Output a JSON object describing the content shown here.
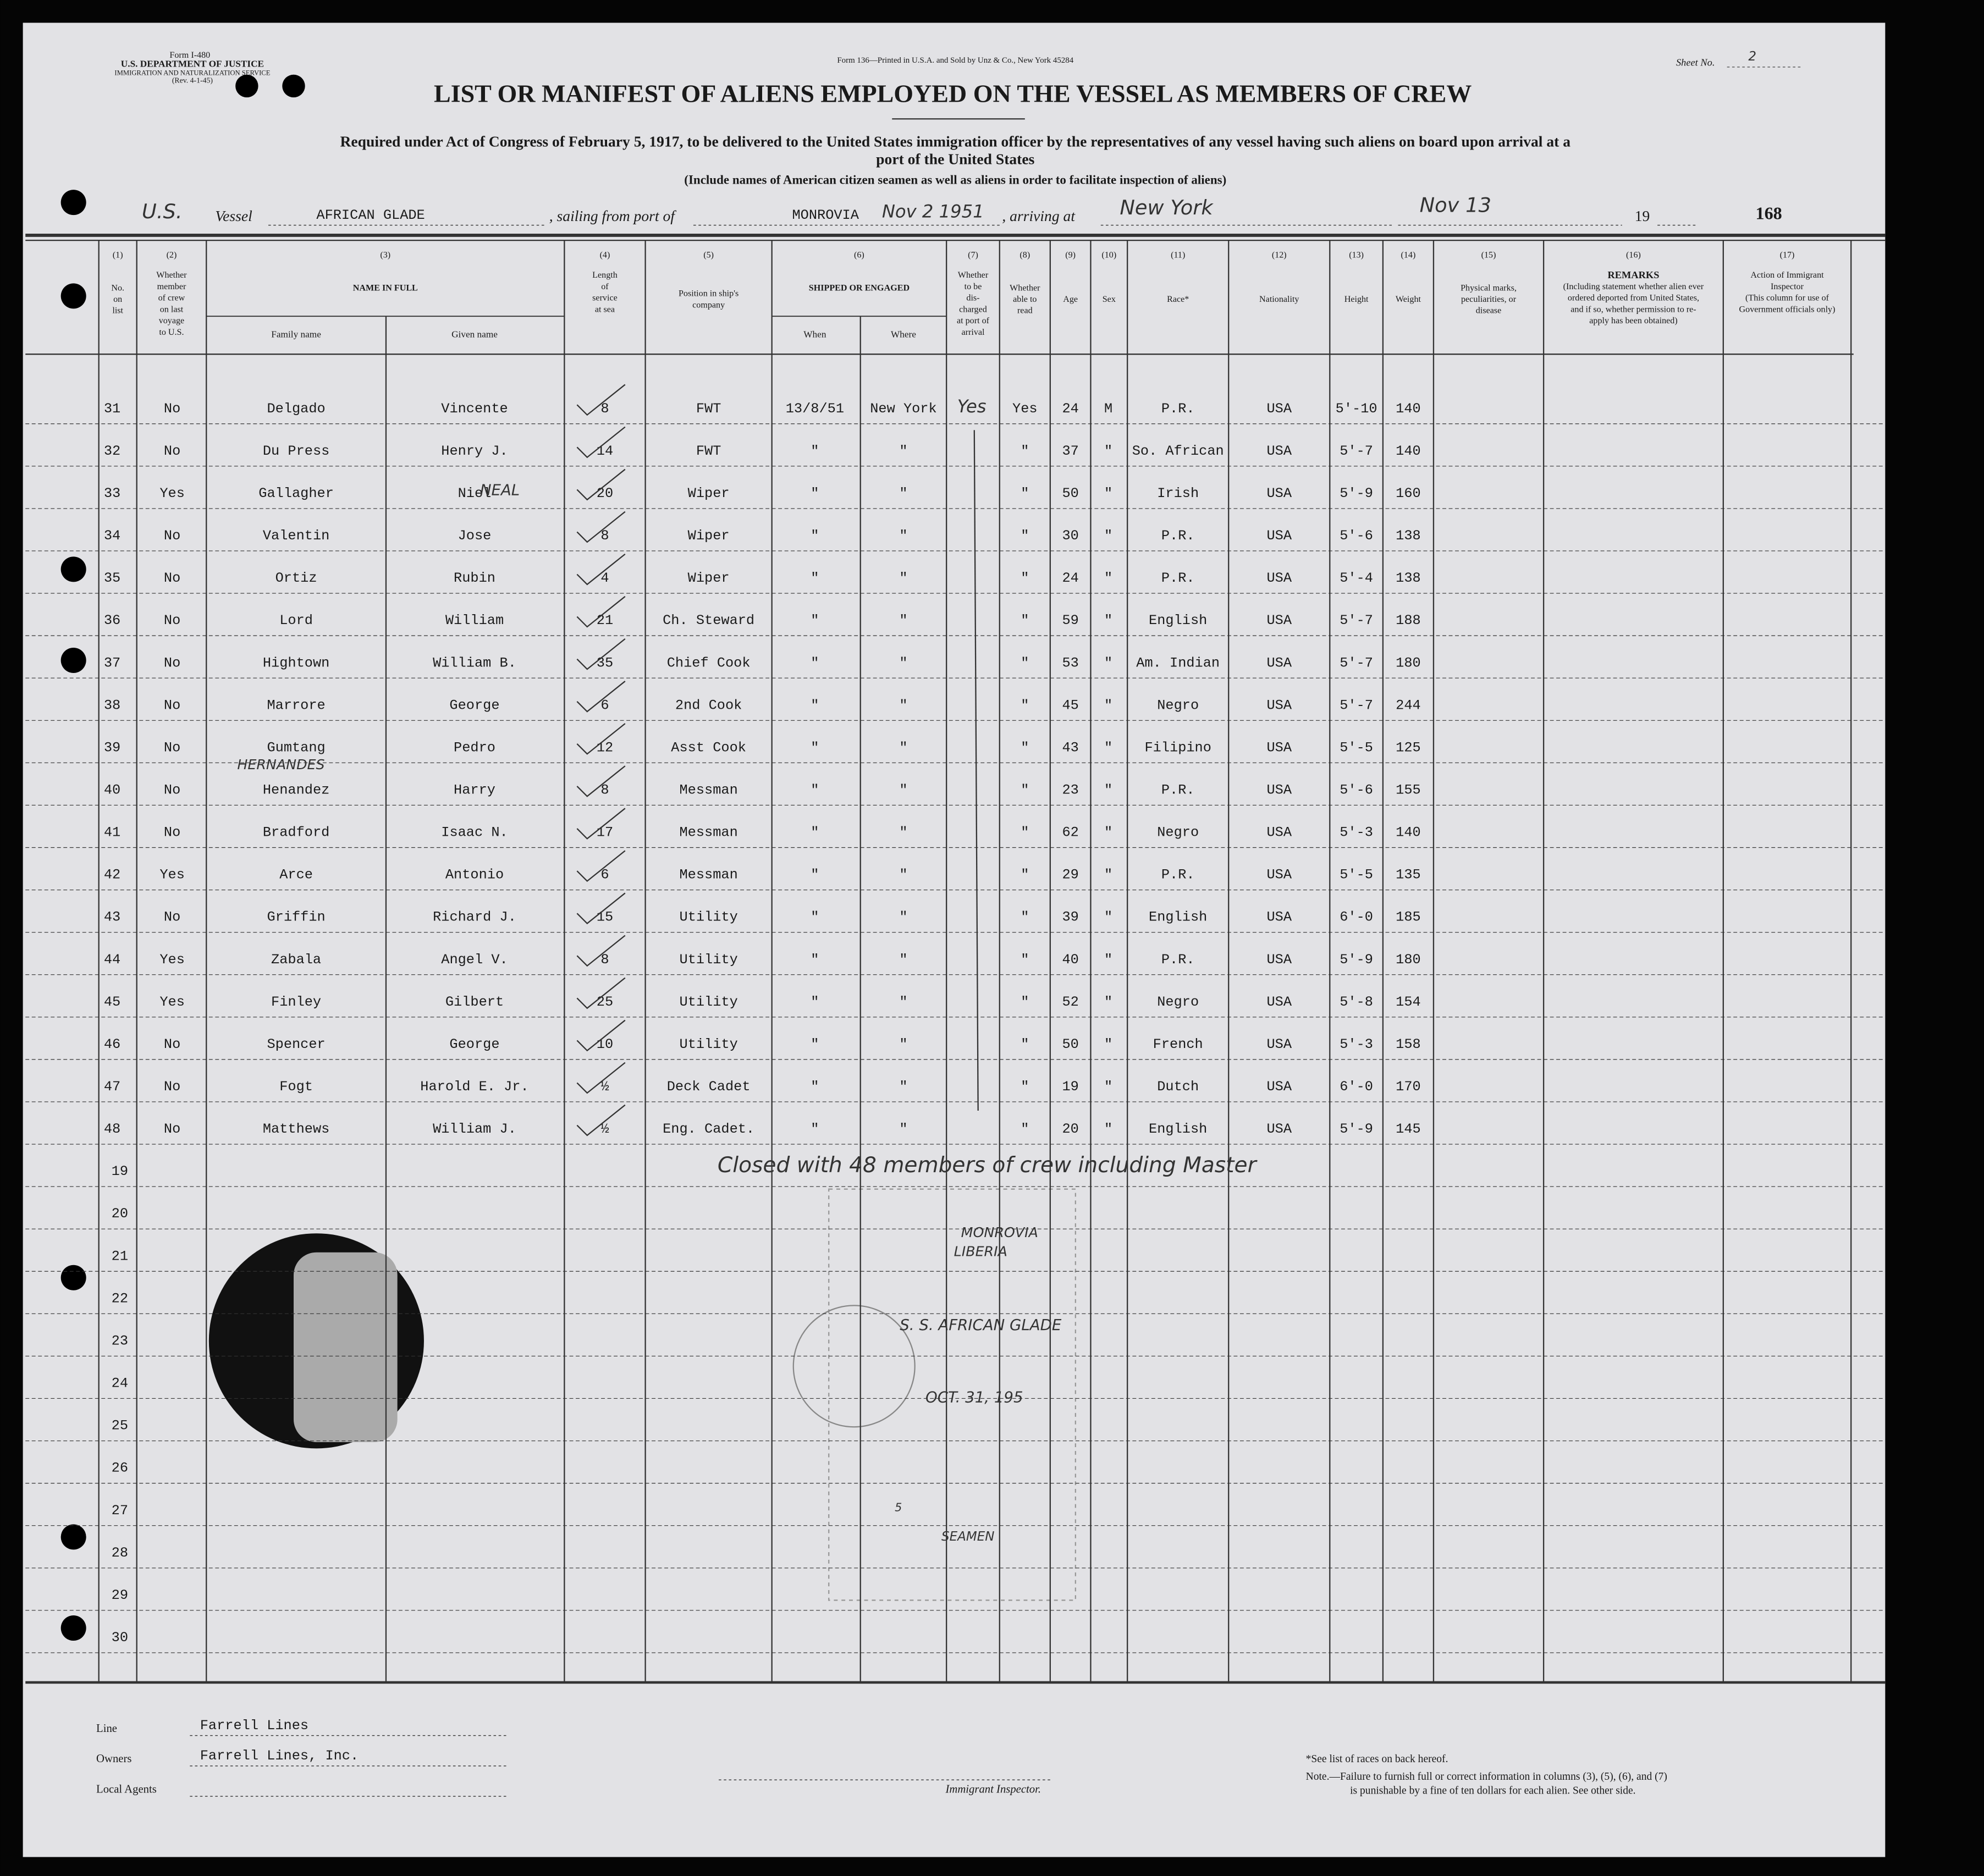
{
  "header": {
    "form_id": "Form I-480",
    "department": "U.S. DEPARTMENT OF JUSTICE",
    "service": "IMMIGRATION AND NATURALIZATION SERVICE",
    "revision": "(Rev. 4-1-45)",
    "printer": "Form 136—Printed in U.S.A. and Sold by Unz & Co., New York 45284",
    "sheet_label": "Sheet No.",
    "sheet_no": "2",
    "title": "LIST OR MANIFEST OF ALIENS EMPLOYED ON THE VESSEL AS MEMBERS OF CREW",
    "subtitle_1": "Required under Act of Congress of February 5, 1917, to be delivered to the United States immigration officer by the representatives of any vessel having such aliens on board upon arrival at a",
    "subtitle_2": "port of the United States",
    "subtitle_3": "(Include names of American citizen seamen as well as aliens in order to facilitate inspection of aliens)"
  },
  "vessel": {
    "flag": "U.S.",
    "vessel_label": "Vessel",
    "vessel_name": "AFRICAN GLADE",
    "sailing_label": ", sailing from port of",
    "port": "MONROVIA",
    "sailing_date": "Nov 2 1951",
    "arriving_label": ", arriving at",
    "arrival_port": "New York",
    "arrival_date": "Nov 13",
    "year_label": "19",
    "stamp_no": "168"
  },
  "columns": [
    {
      "num": "(1)",
      "lines": [
        "No.",
        "on",
        "list"
      ]
    },
    {
      "num": "(2)",
      "lines": [
        "Whether",
        "member",
        "of crew",
        "on last",
        "voyage",
        "to U.S."
      ]
    },
    {
      "num": "(3)",
      "lines": [
        "NAME IN FULL"
      ],
      "sub": [
        "Family name",
        "Given name"
      ]
    },
    {
      "num": "(4)",
      "lines": [
        "Length",
        "of",
        "service",
        "at sea"
      ]
    },
    {
      "num": "(5)",
      "lines": [
        "Position in ship's",
        "company"
      ]
    },
    {
      "num": "(6)",
      "lines": [
        "SHIPPED OR ENGAGED"
      ],
      "sub": [
        "When",
        "Where"
      ]
    },
    {
      "num": "(7)",
      "lines": [
        "Whether",
        "to be",
        "dis-",
        "charged",
        "at port of",
        "arrival"
      ]
    },
    {
      "num": "(8)",
      "lines": [
        "Whether",
        "able to",
        "read"
      ]
    },
    {
      "num": "(9)",
      "lines": [
        "Age"
      ]
    },
    {
      "num": "(10)",
      "lines": [
        "Sex"
      ]
    },
    {
      "num": "(11)",
      "lines": [
        "Race*"
      ]
    },
    {
      "num": "(12)",
      "lines": [
        "Nationality"
      ]
    },
    {
      "num": "(13)",
      "lines": [
        "Height"
      ]
    },
    {
      "num": "(14)",
      "lines": [
        "Weight"
      ]
    },
    {
      "num": "(15)",
      "lines": [
        "Physical marks,",
        "peculiarities, or",
        "disease"
      ]
    },
    {
      "num": "(16)",
      "lines": [
        "REMARKS",
        "(Including statement whether alien ever",
        "ordered deported from United States,",
        "and if so, whether permission to re-",
        "apply has been obtained)"
      ]
    },
    {
      "num": "(17)",
      "lines": [
        "Action of Immigrant",
        "Inspector",
        "(This column for use of",
        "Government officials only)"
      ]
    }
  ],
  "rows": [
    [
      "31",
      "No",
      "Delgado",
      "Vincente",
      "8",
      "FWT",
      "13/8/51",
      "New York",
      "Yes",
      "24",
      "M",
      "P.R.",
      "USA",
      "5'-10",
      "140"
    ],
    [
      "32",
      "No",
      "Du Press",
      "Henry J.",
      "14",
      "FWT",
      "\"",
      "\"",
      "\"",
      "37",
      "\"",
      "So. African",
      "USA",
      "5'-7",
      "140"
    ],
    [
      "33",
      "Yes",
      "Gallagher",
      "Niel",
      "20",
      "Wiper",
      "\"",
      "\"",
      "\"",
      "50",
      "\"",
      "Irish",
      "USA",
      "5'-9",
      "160"
    ],
    [
      "34",
      "No",
      "Valentin",
      "Jose",
      "8",
      "Wiper",
      "\"",
      "\"",
      "\"",
      "30",
      "\"",
      "P.R.",
      "USA",
      "5'-6",
      "138"
    ],
    [
      "35",
      "No",
      "Ortiz",
      "Rubin",
      "4",
      "Wiper",
      "\"",
      "\"",
      "\"",
      "24",
      "\"",
      "P.R.",
      "USA",
      "5'-4",
      "138"
    ],
    [
      "36",
      "No",
      "Lord",
      "William",
      "21",
      "Ch. Steward",
      "\"",
      "\"",
      "\"",
      "59",
      "\"",
      "English",
      "USA",
      "5'-7",
      "188"
    ],
    [
      "37",
      "No",
      "Hightown",
      "William B.",
      "35",
      "Chief Cook",
      "\"",
      "\"",
      "\"",
      "53",
      "\"",
      "Am. Indian",
      "USA",
      "5'-7",
      "180"
    ],
    [
      "38",
      "No",
      "Marrore",
      "George",
      "6",
      "2nd Cook",
      "\"",
      "\"",
      "\"",
      "45",
      "\"",
      "Negro",
      "USA",
      "5'-7",
      "244"
    ],
    [
      "39",
      "No",
      "Gumtang",
      "Pedro",
      "12",
      "Asst Cook",
      "\"",
      "\"",
      "\"",
      "43",
      "\"",
      "Filipino",
      "USA",
      "5'-5",
      "125"
    ],
    [
      "40",
      "No",
      "Henandez",
      "Harry",
      "8",
      "Messman",
      "\"",
      "\"",
      "\"",
      "23",
      "\"",
      "P.R.",
      "USA",
      "5'-6",
      "155"
    ],
    [
      "41",
      "No",
      "Bradford",
      "Isaac N.",
      "17",
      "Messman",
      "\"",
      "\"",
      "\"",
      "62",
      "\"",
      "Negro",
      "USA",
      "5'-3",
      "140"
    ],
    [
      "42",
      "Yes",
      "Arce",
      "Antonio",
      "6",
      "Messman",
      "\"",
      "\"",
      "\"",
      "29",
      "\"",
      "P.R.",
      "USA",
      "5'-5",
      "135"
    ],
    [
      "43",
      "No",
      "Griffin",
      "Richard J.",
      "15",
      "Utility",
      "\"",
      "\"",
      "\"",
      "39",
      "\"",
      "English",
      "USA",
      "6'-0",
      "185"
    ],
    [
      "44",
      "Yes",
      "Zabala",
      "Angel V.",
      "8",
      "Utility",
      "\"",
      "\"",
      "\"",
      "40",
      "\"",
      "P.R.",
      "USA",
      "5'-9",
      "180"
    ],
    [
      "45",
      "Yes",
      "Finley",
      "Gilbert",
      "25",
      "Utility",
      "\"",
      "\"",
      "\"",
      "52",
      "\"",
      "Negro",
      "USA",
      "5'-8",
      "154"
    ],
    [
      "46",
      "No",
      "Spencer",
      "George",
      "10",
      "Utility",
      "\"",
      "\"",
      "\"",
      "50",
      "\"",
      "French",
      "USA",
      "5'-3",
      "158"
    ],
    [
      "47",
      "No",
      "Fogt",
      "Harold E. Jr.",
      "½",
      "Deck Cadet",
      "\"",
      "\"",
      "\"",
      "19",
      "\"",
      "Dutch",
      "USA",
      "6'-0",
      "170"
    ],
    [
      "48",
      "No",
      "Matthews",
      "William J.",
      "½",
      "Eng. Cadet.",
      "\"",
      "\"",
      "\"",
      "20",
      "\"",
      "English",
      "USA",
      "5'-9",
      "145"
    ]
  ],
  "blank_rows": [
    "19",
    "20",
    "21",
    "22",
    "23",
    "24",
    "25",
    "26",
    "27",
    "28",
    "29",
    "30"
  ],
  "handwritten": {
    "discharged": "Yes",
    "given_correction": "NEAL",
    "family_correction": "HERNANDES",
    "closing_note": "Closed with 48 members of crew including Master"
  },
  "stamp": {
    "city": "MONROVIA",
    "country": "LIBERIA",
    "vessel": "S. S. AFRICAN GLADE",
    "date": "OCT. 31, 195",
    "count": "5",
    "crew_type": "SEAMEN"
  },
  "footer": {
    "line_label": "Line",
    "line": "Farrell Lines",
    "owners_label": "Owners",
    "owners": "Farrell Lines, Inc.",
    "agents_label": "Local Agents",
    "inspector_label": "Immigrant Inspector.",
    "races_note": "*See list of races on back hereof.",
    "note_1": "Note.—Failure to furnish full or correct information in columns (3), (5), (6), and (7)",
    "note_2": "is punishable by a fine of ten dollars for each alien.  See other side."
  }
}
